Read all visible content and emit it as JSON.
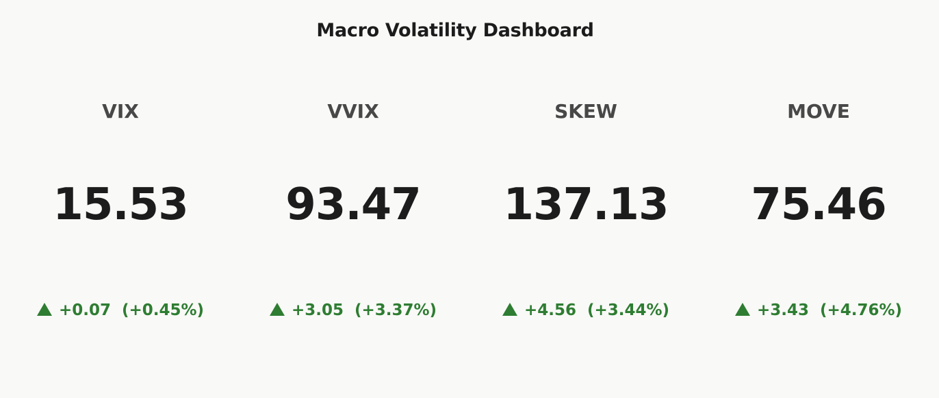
{
  "chart_data": {
    "type": "table",
    "title": "Macro Volatility Dashboard",
    "positive_color": "#2e7d32",
    "metrics": [
      {
        "label": "VIX",
        "value": "15.53",
        "change": "+0.07",
        "change_pct": "(+0.45%)",
        "direction": "up"
      },
      {
        "label": "VVIX",
        "value": "93.47",
        "change": "+3.05",
        "change_pct": "(+3.37%)",
        "direction": "up"
      },
      {
        "label": "SKEW",
        "value": "137.13",
        "change": "+4.56",
        "change_pct": "(+3.44%)",
        "direction": "up"
      },
      {
        "label": "MOVE",
        "value": "75.46",
        "change": "+3.43",
        "change_pct": "(+4.76%)",
        "direction": "up"
      }
    ]
  }
}
